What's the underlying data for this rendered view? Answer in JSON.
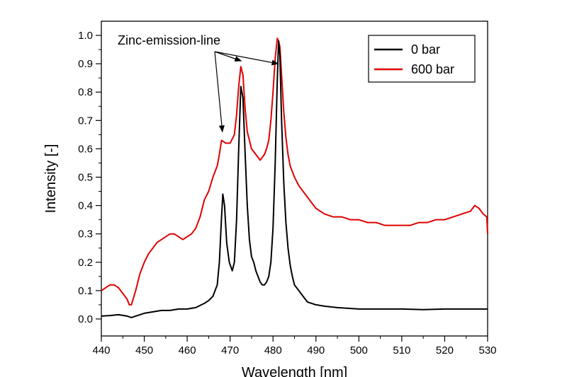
{
  "chart_data": {
    "type": "line",
    "title": "",
    "xlabel": "Wavelength [nm]",
    "ylabel": "Intensity [-]",
    "xlim": [
      440,
      530
    ],
    "ylim": [
      -0.06,
      1.05
    ],
    "xticks": [
      440,
      450,
      460,
      470,
      480,
      490,
      500,
      510,
      520,
      530
    ],
    "xtick_labels": [
      "440",
      "450",
      "460",
      "470",
      "480",
      "490",
      "500",
      "510",
      "520",
      "530"
    ],
    "yticks": [
      0.0,
      0.1,
      0.2,
      0.3,
      0.4,
      0.5,
      0.6,
      0.7,
      0.8,
      0.9,
      1.0
    ],
    "ytick_labels": [
      "0.0",
      "0.1",
      "0.2",
      "0.3",
      "0.4",
      "0.5",
      "0.6",
      "0.7",
      "0.8",
      "0.9",
      "1.0"
    ],
    "grid": false,
    "legend_position": "top-right",
    "annotation": {
      "text": "Zinc-emission-line",
      "points_to": [
        [
          468.2,
          0.66
        ],
        [
          472.6,
          0.91
        ],
        [
          481.2,
          0.9
        ]
      ]
    },
    "series": [
      {
        "name": "0 bar",
        "color": "#000000",
        "x": [
          440,
          442,
          444,
          446,
          447,
          448,
          450,
          452,
          454,
          456,
          458,
          460,
          462,
          464,
          465,
          466,
          467,
          467.5,
          468,
          468.3,
          468.7,
          469.2,
          469.8,
          470.5,
          471,
          471.5,
          472,
          472.5,
          473,
          473.5,
          474,
          474.5,
          475,
          475.5,
          476,
          476.5,
          477,
          477.5,
          478,
          478.5,
          479,
          479.5,
          480,
          480.5,
          481,
          481.3,
          481.6,
          482,
          482.5,
          483,
          483.5,
          484,
          484.5,
          485,
          486,
          487,
          488,
          490,
          492,
          495,
          500,
          505,
          510,
          515,
          520,
          525,
          528,
          530
        ],
        "values": [
          0.01,
          0.012,
          0.015,
          0.01,
          0.005,
          0.01,
          0.02,
          0.025,
          0.03,
          0.03,
          0.035,
          0.035,
          0.04,
          0.055,
          0.065,
          0.08,
          0.12,
          0.2,
          0.36,
          0.44,
          0.4,
          0.27,
          0.2,
          0.17,
          0.2,
          0.35,
          0.6,
          0.82,
          0.78,
          0.58,
          0.4,
          0.28,
          0.22,
          0.2,
          0.17,
          0.15,
          0.13,
          0.12,
          0.12,
          0.13,
          0.15,
          0.2,
          0.32,
          0.55,
          0.85,
          0.98,
          0.93,
          0.7,
          0.48,
          0.34,
          0.25,
          0.19,
          0.15,
          0.12,
          0.1,
          0.08,
          0.06,
          0.05,
          0.045,
          0.04,
          0.035,
          0.035,
          0.035,
          0.033,
          0.035,
          0.035,
          0.035,
          0.035
        ]
      },
      {
        "name": "600 bar",
        "color": "#e00000",
        "x": [
          440,
          441,
          442,
          443,
          444,
          445,
          446,
          446.5,
          447,
          448,
          449,
          450,
          451,
          452,
          453,
          454,
          455,
          456,
          457,
          458,
          459,
          460,
          461,
          462,
          463,
          464,
          465,
          466,
          467,
          467.5,
          468,
          469,
          470,
          471,
          471.5,
          472,
          472.5,
          473,
          473.5,
          474,
          475,
          476,
          476.5,
          477,
          477.5,
          478,
          478.5,
          479,
          479.5,
          480,
          480.5,
          481,
          481.3,
          481.6,
          482,
          482.5,
          483,
          483.5,
          484,
          485,
          486,
          487,
          488,
          489,
          490,
          492,
          494,
          496,
          498,
          500,
          502,
          504,
          506,
          508,
          510,
          512,
          514,
          516,
          518,
          520,
          522,
          524,
          526,
          527,
          528,
          529,
          529.8,
          530
        ],
        "values": [
          0.1,
          0.11,
          0.12,
          0.12,
          0.11,
          0.09,
          0.07,
          0.05,
          0.05,
          0.1,
          0.16,
          0.2,
          0.23,
          0.25,
          0.27,
          0.28,
          0.29,
          0.3,
          0.3,
          0.29,
          0.28,
          0.29,
          0.3,
          0.32,
          0.36,
          0.42,
          0.45,
          0.5,
          0.54,
          0.58,
          0.63,
          0.62,
          0.62,
          0.65,
          0.72,
          0.82,
          0.89,
          0.86,
          0.74,
          0.66,
          0.6,
          0.58,
          0.57,
          0.56,
          0.57,
          0.58,
          0.6,
          0.63,
          0.7,
          0.8,
          0.92,
          0.99,
          0.98,
          0.96,
          0.86,
          0.73,
          0.64,
          0.58,
          0.54,
          0.5,
          0.47,
          0.45,
          0.43,
          0.41,
          0.39,
          0.37,
          0.36,
          0.36,
          0.35,
          0.35,
          0.34,
          0.34,
          0.33,
          0.33,
          0.33,
          0.33,
          0.34,
          0.34,
          0.35,
          0.35,
          0.36,
          0.37,
          0.38,
          0.4,
          0.39,
          0.37,
          0.36,
          0.3
        ]
      }
    ]
  }
}
